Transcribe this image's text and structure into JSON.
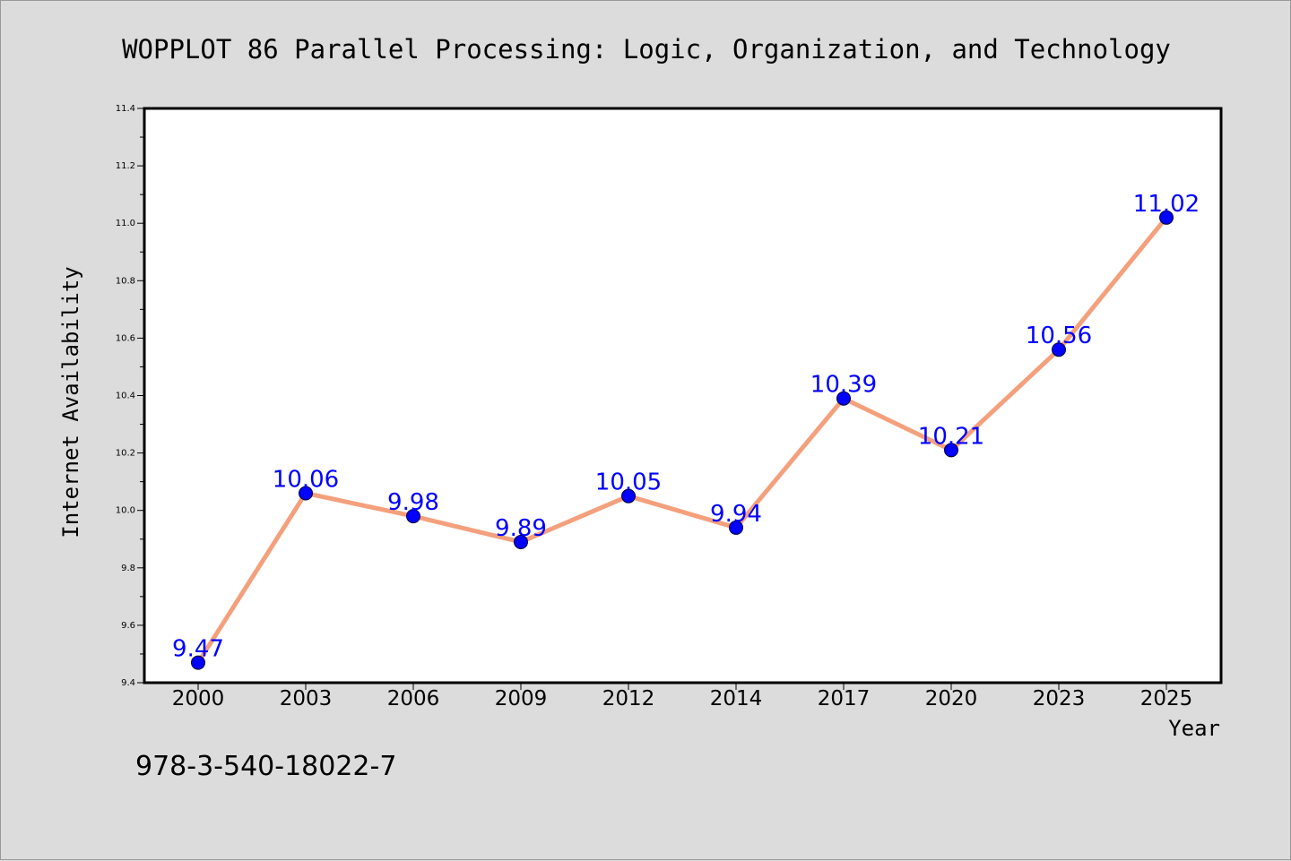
{
  "chart_data": {
    "type": "line",
    "title": "WOPPLOT 86 Parallel Processing: Logic, Organization, and Technology",
    "xlabel": "Year",
    "ylabel": "Internet Availability",
    "categories": [
      "2000",
      "2003",
      "2006",
      "2009",
      "2012",
      "2014",
      "2017",
      "2020",
      "2023",
      "2025"
    ],
    "series": [
      {
        "values": [
          9.47,
          10.06,
          9.98,
          9.89,
          10.05,
          9.94,
          10.39,
          10.21,
          10.56,
          11.02
        ]
      }
    ],
    "data_labels": [
      "9.47",
      "10.06",
      "9.98",
      "9.89",
      "10.05",
      "9.94",
      "10.39",
      "10.21",
      "10.56",
      "11.02"
    ],
    "ylim": [
      9.4,
      11.4
    ],
    "yticks": [
      "9.4",
      "9.6",
      "9.8",
      "10.0",
      "10.2",
      "10.4",
      "10.6",
      "10.8",
      "11.0",
      "11.2",
      "11.4"
    ],
    "grid": false,
    "legend": "none",
    "annotation": "978-3-540-18022-7",
    "colors": {
      "line": "#f4a07c",
      "marker": "#0000ff",
      "marker_edge": "#000033",
      "data_label": "#0000ff",
      "plot_bg": "#ffffff",
      "page_bg": "#dcdcdc"
    }
  }
}
